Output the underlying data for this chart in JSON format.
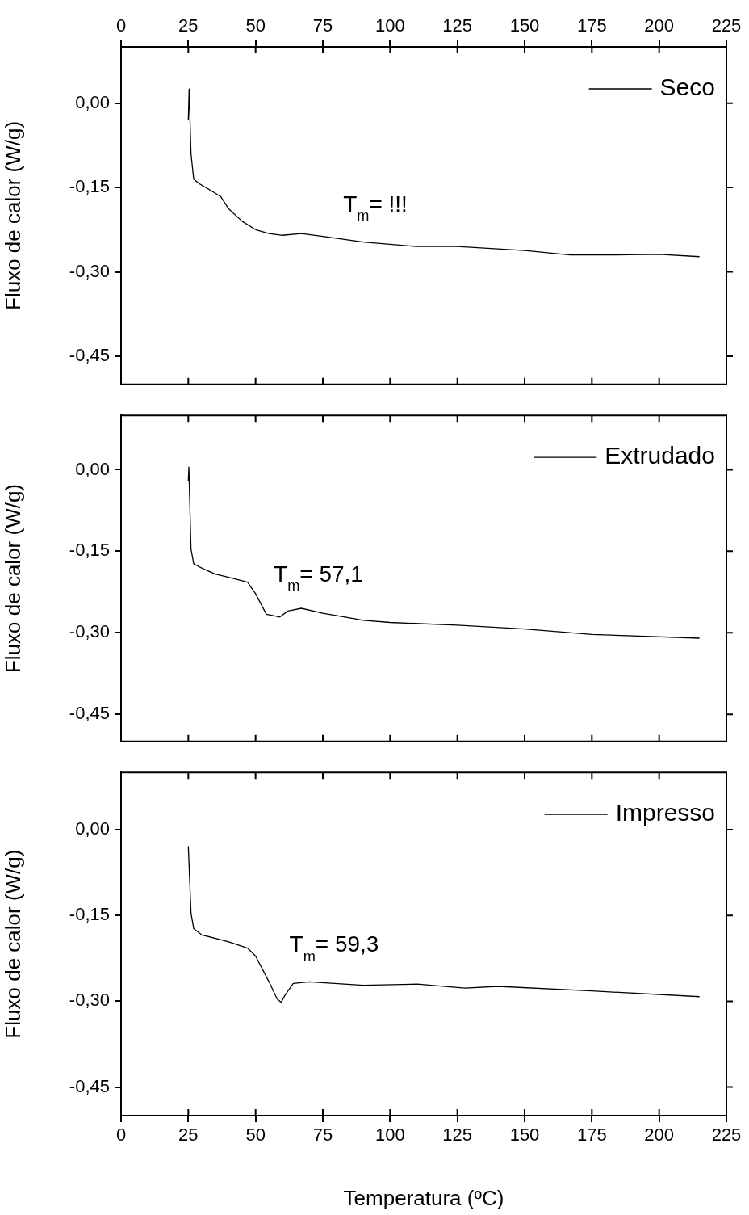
{
  "chart_data": [
    {
      "type": "line",
      "ylabel": "Fluxo de calor (W/g)",
      "xlim": [
        0,
        225
      ],
      "xticks": [
        0,
        25,
        50,
        75,
        100,
        125,
        150,
        175,
        200,
        225
      ],
      "ylim": [
        -0.5,
        0.1
      ],
      "yticks": [
        {
          "value": 0,
          "label": "0,00"
        },
        {
          "value": -0.15,
          "label": "-0,15"
        },
        {
          "value": -0.3,
          "label": "-0,30"
        },
        {
          "value": -0.45,
          "label": "-0,45"
        }
      ],
      "legend": "top right",
      "grid": false,
      "marker": "none",
      "line_style": "solid",
      "annotations": [
        "T$_{m}$= !!!"
      ],
      "series": [
        {
          "name": "Seco",
          "color": "#000000",
          "x": [
            25,
            25.3,
            26,
            27,
            29,
            37,
            40,
            45,
            50,
            55,
            60,
            67,
            75,
            90,
            110,
            125,
            150,
            167,
            180,
            200,
            215
          ],
          "values": [
            -0.03,
            0.025,
            -0.09,
            -0.135,
            -0.143,
            -0.166,
            -0.188,
            -0.21,
            -0.225,
            -0.232,
            -0.235,
            -0.232,
            -0.237,
            -0.247,
            -0.255,
            -0.255,
            -0.262,
            -0.27,
            -0.27,
            -0.269,
            -0.273
          ]
        }
      ]
    },
    {
      "type": "line",
      "ylabel": "Fluxo de calor (W/g)",
      "xlim": [
        0,
        225
      ],
      "xticks": [
        0,
        25,
        50,
        75,
        100,
        125,
        150,
        175,
        200,
        225
      ],
      "tick_labels": "y",
      "ylim": [
        -0.5,
        0.1
      ],
      "yticks": [
        {
          "value": 0,
          "label": "0,00"
        },
        {
          "value": -0.15,
          "label": "-0,15"
        },
        {
          "value": -0.3,
          "label": "-0,30"
        },
        {
          "value": -0.45,
          "label": "-0,45"
        }
      ],
      "legend": "top right",
      "grid": false,
      "marker": "none",
      "line_style": "solid",
      "annotations": [
        "T$_{m}$= 57,1"
      ],
      "series": [
        {
          "name": "Extrudado",
          "color": "#000000",
          "x": [
            25,
            25.2,
            26,
            27,
            30,
            35,
            40,
            47,
            50,
            54,
            57,
            59,
            62,
            67,
            75,
            90,
            100,
            125,
            150,
            175,
            215
          ],
          "values": [
            -0.02,
            0.005,
            -0.146,
            -0.173,
            -0.181,
            -0.192,
            -0.198,
            -0.207,
            -0.228,
            -0.266,
            -0.269,
            -0.271,
            -0.26,
            -0.255,
            -0.264,
            -0.277,
            -0.281,
            -0.286,
            -0.293,
            -0.303,
            -0.31
          ]
        }
      ]
    },
    {
      "type": "line",
      "ylabel": "Fluxo de calor (W/g)",
      "xlabel": "Temperatura (ºC)",
      "xlim": [
        0,
        225
      ],
      "xticks": [
        0,
        25,
        50,
        75,
        100,
        125,
        150,
        175,
        200,
        225
      ],
      "ylim": [
        -0.5,
        0.1
      ],
      "yticks": [
        {
          "value": 0,
          "label": "0,00"
        },
        {
          "value": -0.15,
          "label": "-0,15"
        },
        {
          "value": -0.3,
          "label": "-0,30"
        },
        {
          "value": -0.45,
          "label": "-0,45"
        }
      ],
      "legend": "top right",
      "grid": false,
      "marker": "none",
      "line_style": "solid",
      "annotations": [
        "T$_{m}$= 59,3"
      ],
      "series": [
        {
          "name": "Impresso",
          "color": "#000000",
          "x": [
            25,
            26,
            27,
            30,
            40,
            47,
            50,
            55,
            58,
            59.5,
            61,
            64,
            70,
            90,
            110,
            125,
            128,
            140,
            175,
            215
          ],
          "values": [
            -0.029,
            -0.146,
            -0.173,
            -0.184,
            -0.196,
            -0.207,
            -0.221,
            -0.266,
            -0.296,
            -0.302,
            -0.289,
            -0.269,
            -0.266,
            -0.272,
            -0.27,
            -0.276,
            -0.277,
            -0.274,
            -0.282,
            -0.292
          ]
        }
      ]
    }
  ]
}
